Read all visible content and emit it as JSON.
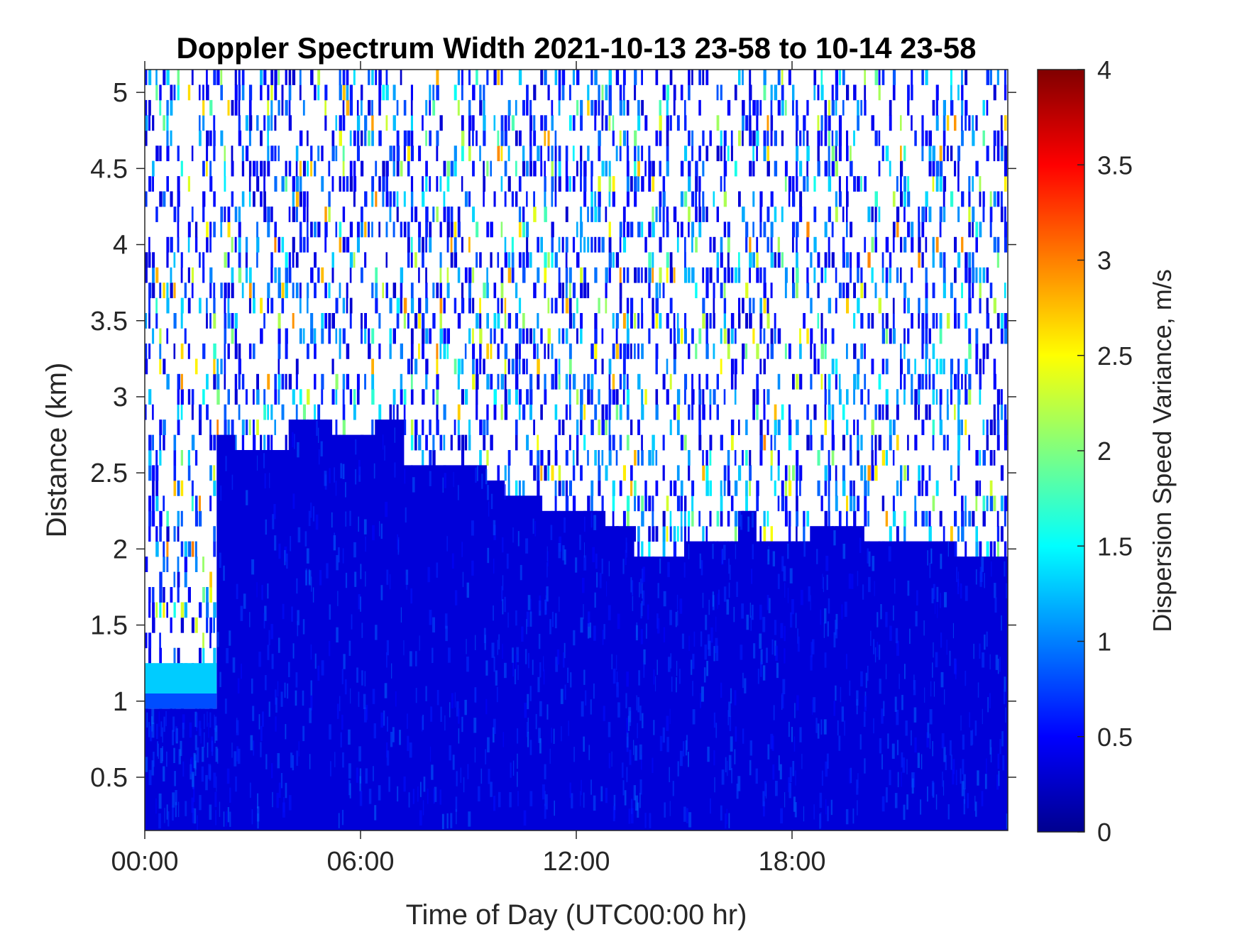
{
  "chart_data": {
    "type": "heatmap",
    "title": "Doppler Spectrum Width 2021-10-13 23-58 to 10-14 23-58",
    "xlabel": "Time of Day (UTC00:00 hr)",
    "ylabel": "Distance (km)",
    "colorbar_label": "Dispersion Speed Variance, m/s",
    "colormap": "jet",
    "xlim": [
      0,
      24
    ],
    "ylim": [
      0.15,
      5.15
    ],
    "clim": [
      0,
      4
    ],
    "x_ticks": [
      0,
      6,
      12,
      18
    ],
    "x_tick_labels": [
      "00:00",
      "06:00",
      "12:00",
      "18:00"
    ],
    "y_ticks": [
      0.5,
      1,
      1.5,
      2,
      2.5,
      3,
      3.5,
      4,
      4.5,
      5
    ],
    "y_tick_labels": [
      "0.5",
      "1",
      "1.5",
      "2",
      "2.5",
      "3",
      "3.5",
      "4",
      "4.5",
      "5"
    ],
    "colorbar_ticks": [
      0,
      0.5,
      1,
      1.5,
      2,
      2.5,
      3,
      3.5,
      4
    ],
    "colorbar_tick_labels": [
      "0",
      "0.5",
      "1",
      "1.5",
      "2",
      "2.5",
      "3",
      "3.5",
      "4"
    ],
    "grid": false,
    "solid_layer_top_km": [
      {
        "x": 0.0,
        "top": 0.95
      },
      {
        "x": 2.0,
        "top": 2.75
      },
      {
        "x": 2.5,
        "top": 2.65
      },
      {
        "x": 4.0,
        "top": 2.85
      },
      {
        "x": 5.2,
        "top": 2.75
      },
      {
        "x": 6.4,
        "top": 2.85
      },
      {
        "x": 7.2,
        "top": 2.55
      },
      {
        "x": 9.5,
        "top": 2.45
      },
      {
        "x": 10.0,
        "top": 2.35
      },
      {
        "x": 11.0,
        "top": 2.25
      },
      {
        "x": 12.8,
        "top": 2.15
      },
      {
        "x": 13.6,
        "top": 1.95
      },
      {
        "x": 15.0,
        "top": 2.05
      },
      {
        "x": 16.5,
        "top": 2.25
      },
      {
        "x": 17.0,
        "top": 2.05
      },
      {
        "x": 18.5,
        "top": 2.15
      },
      {
        "x": 20.0,
        "top": 2.05
      },
      {
        "x": 22.5,
        "top": 1.95
      },
      {
        "x": 24.0,
        "top": 1.95
      }
    ],
    "solid_layer_value": 0.35,
    "cloud_base_band": {
      "x_range": [
        0,
        2.0
      ],
      "y_range": [
        1.05,
        1.25
      ],
      "value": 1.3
    },
    "noise_region_typical_value": 0.5
  }
}
